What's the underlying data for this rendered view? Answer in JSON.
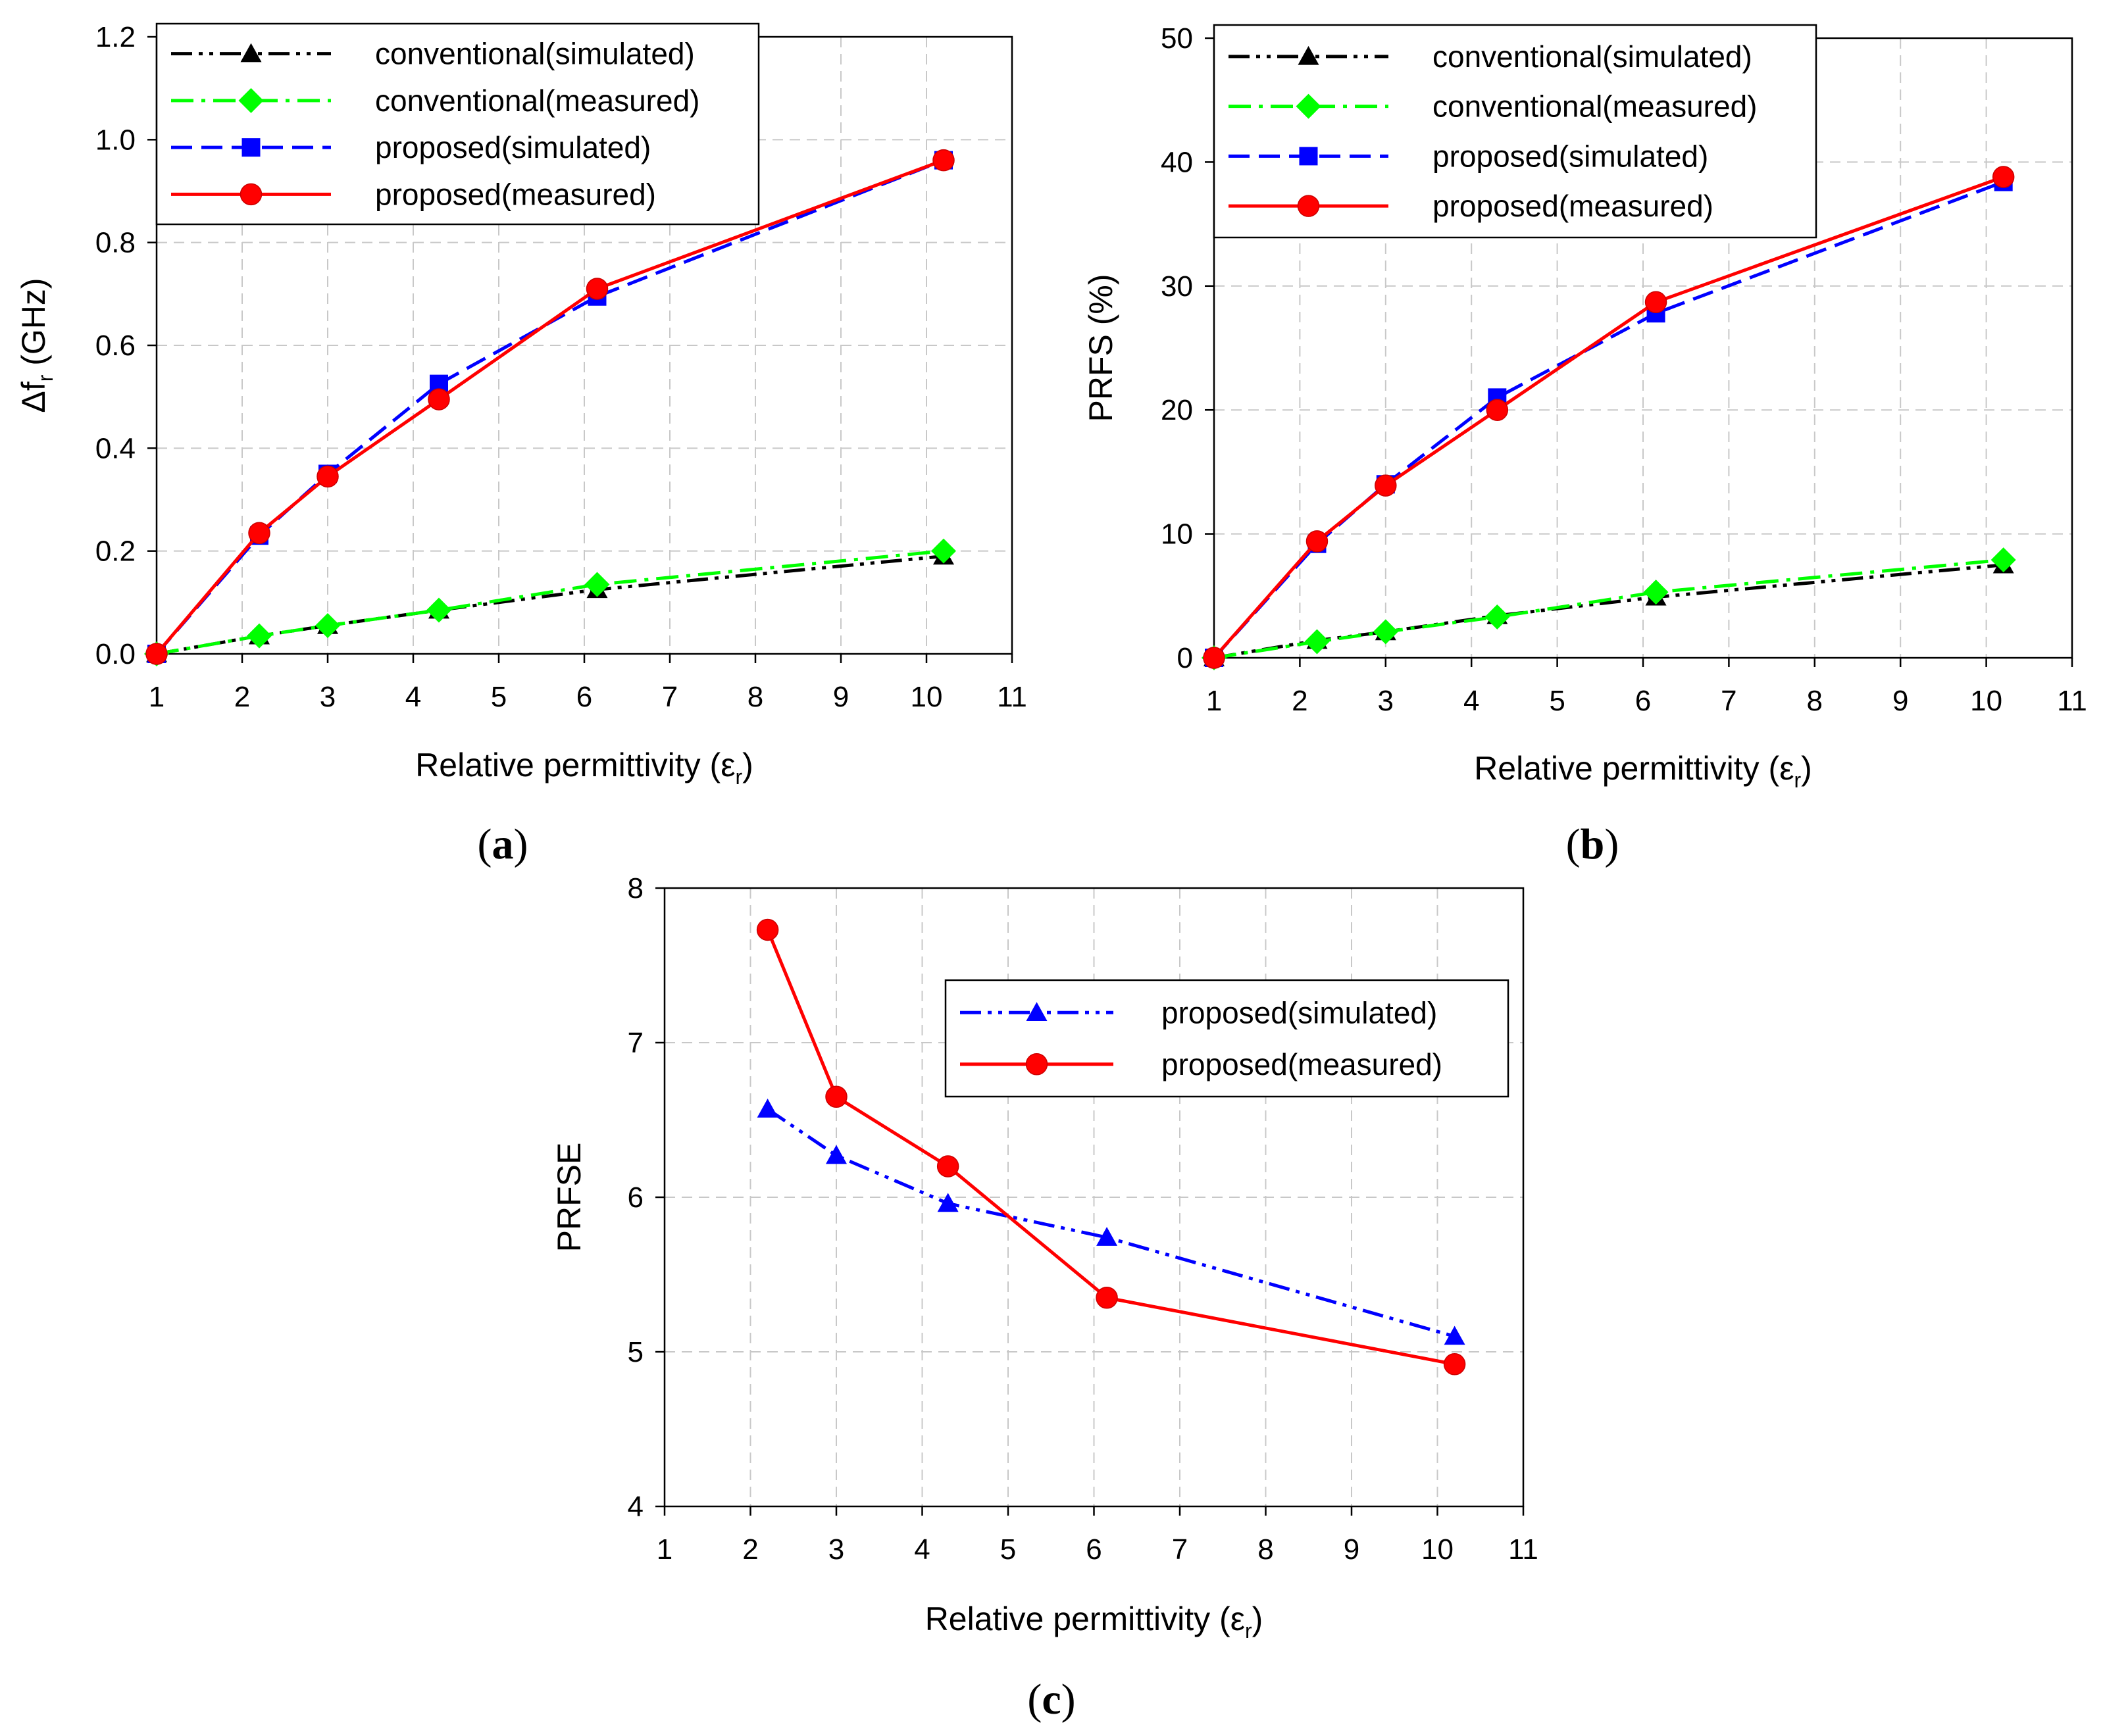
{
  "panels": [
    {
      "id": "a",
      "caption_open": "(",
      "caption_letter": "a",
      "caption_close": ")",
      "ylabel_main": "Δf",
      "ylabel_sub": "r",
      "ylabel_tail": " (GHz)",
      "xlabel_main": "Relative permittivity (ε",
      "xlabel_sub": "r",
      "xlabel_tail": ")"
    },
    {
      "id": "b",
      "caption_open": "(",
      "caption_letter": "b",
      "caption_close": ")",
      "ylabel_main": "PRFS (%)",
      "ylabel_sub": "",
      "ylabel_tail": "",
      "xlabel_main": "Relative permittivity (ε",
      "xlabel_sub": "r",
      "xlabel_tail": ")"
    },
    {
      "id": "c",
      "caption_open": "(",
      "caption_letter": "c",
      "caption_close": ")",
      "ylabel_main": "PRFSE",
      "ylabel_sub": "",
      "ylabel_tail": "",
      "xlabel_main": "Relative permittivity (ε",
      "xlabel_sub": "r",
      "xlabel_tail": ")"
    }
  ],
  "chart_data": [
    {
      "type": "line",
      "panel": "a",
      "title": "",
      "xlabel": "Relative permittivity (εr)",
      "ylabel": "Δfr (GHz)",
      "xlim": [
        1,
        11
      ],
      "ylim": [
        0,
        1.2
      ],
      "xticks": [
        1,
        2,
        3,
        4,
        5,
        6,
        7,
        8,
        9,
        10,
        11
      ],
      "yticks": [
        0.0,
        0.2,
        0.4,
        0.6,
        0.8,
        1.0,
        1.2
      ],
      "ytick_labels": [
        "0.0",
        "0.2",
        "0.4",
        "0.6",
        "0.8",
        "1.0",
        "1.2"
      ],
      "grid": true,
      "legend_position": "top-left",
      "series": [
        {
          "name": "conventional(simulated)",
          "color": "#000000",
          "dash": "dash-dot-dot",
          "marker": "triangle",
          "x": [
            1,
            2.2,
            3,
            4.3,
            6.15,
            10.2
          ],
          "values": [
            0.0,
            0.035,
            0.055,
            0.085,
            0.125,
            0.19
          ]
        },
        {
          "name": "conventional(measured)",
          "color": "#00ff00",
          "dash": "dash-dot",
          "marker": "diamond",
          "x": [
            1,
            2.2,
            3,
            4.3,
            6.15,
            10.2
          ],
          "values": [
            0.0,
            0.035,
            0.055,
            0.085,
            0.135,
            0.2
          ]
        },
        {
          "name": "proposed(simulated)",
          "color": "#0000ff",
          "dash": "dash",
          "marker": "square",
          "x": [
            1,
            2.2,
            3,
            4.3,
            6.15,
            10.2
          ],
          "values": [
            0.0,
            0.23,
            0.35,
            0.525,
            0.695,
            0.96
          ]
        },
        {
          "name": "proposed(measured)",
          "color": "#ff0000",
          "dash": "solid",
          "marker": "circle",
          "x": [
            1,
            2.2,
            3,
            4.3,
            6.15,
            10.2
          ],
          "values": [
            0.0,
            0.235,
            0.345,
            0.495,
            0.71,
            0.96
          ]
        }
      ]
    },
    {
      "type": "line",
      "panel": "b",
      "title": "",
      "xlabel": "Relative permittivity (εr)",
      "ylabel": "PRFS (%)",
      "xlim": [
        1,
        11
      ],
      "ylim": [
        0,
        50
      ],
      "xticks": [
        1,
        2,
        3,
        4,
        5,
        6,
        7,
        8,
        9,
        10,
        11
      ],
      "yticks": [
        0,
        10,
        20,
        30,
        40,
        50
      ],
      "ytick_labels": [
        "0",
        "10",
        "20",
        "30",
        "40",
        "50"
      ],
      "grid": true,
      "legend_position": "top-left",
      "series": [
        {
          "name": "conventional(simulated)",
          "color": "#000000",
          "dash": "dash-dot-dot",
          "marker": "triangle",
          "x": [
            1,
            2.2,
            3,
            4.3,
            6.15,
            10.2
          ],
          "values": [
            0.0,
            1.4,
            2.1,
            3.4,
            4.9,
            7.5
          ]
        },
        {
          "name": "conventional(measured)",
          "color": "#00ff00",
          "dash": "dash-dot",
          "marker": "diamond",
          "x": [
            1,
            2.2,
            3,
            4.3,
            6.15,
            10.2
          ],
          "values": [
            0.0,
            1.3,
            2.1,
            3.3,
            5.3,
            7.9
          ]
        },
        {
          "name": "proposed(simulated)",
          "color": "#0000ff",
          "dash": "dash",
          "marker": "square",
          "x": [
            1,
            2.2,
            3,
            4.3,
            6.15,
            10.2
          ],
          "values": [
            0.0,
            9.2,
            14.0,
            21.0,
            27.8,
            38.4
          ]
        },
        {
          "name": "proposed(measured)",
          "color": "#ff0000",
          "dash": "solid",
          "marker": "circle",
          "x": [
            1,
            2.2,
            3,
            4.3,
            6.15,
            10.2
          ],
          "values": [
            0.0,
            9.4,
            13.9,
            20.0,
            28.7,
            38.8
          ]
        }
      ]
    },
    {
      "type": "line",
      "panel": "c",
      "title": "",
      "xlabel": "Relative permittivity (εr)",
      "ylabel": "PRFSE",
      "xlim": [
        1,
        11
      ],
      "ylim": [
        4,
        8
      ],
      "xticks": [
        1,
        2,
        3,
        4,
        5,
        6,
        7,
        8,
        9,
        10,
        11
      ],
      "yticks": [
        4,
        5,
        6,
        7,
        8
      ],
      "ytick_labels": [
        "4",
        "5",
        "6",
        "7",
        "8"
      ],
      "grid": true,
      "legend_position": "upper-right",
      "series": [
        {
          "name": "proposed(simulated)",
          "color": "#0000ff",
          "dash": "dash-dot-dot",
          "marker": "triangle",
          "x": [
            2.2,
            3,
            4.3,
            6.15,
            10.2
          ],
          "values": [
            6.57,
            6.27,
            5.96,
            5.74,
            5.1
          ]
        },
        {
          "name": "proposed(measured)",
          "color": "#ff0000",
          "dash": "solid",
          "marker": "circle",
          "x": [
            2.2,
            3,
            4.3,
            6.15,
            10.2
          ],
          "values": [
            7.73,
            6.65,
            6.2,
            5.35,
            4.92
          ]
        }
      ]
    }
  ]
}
